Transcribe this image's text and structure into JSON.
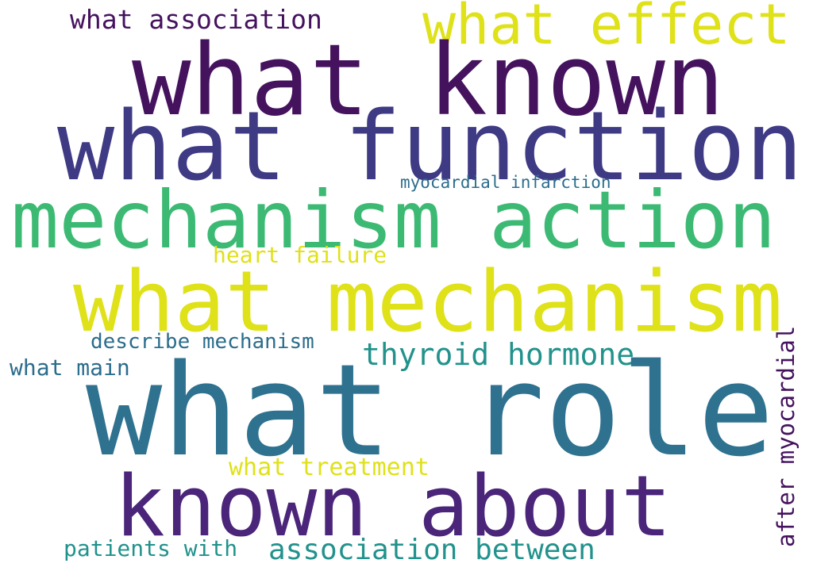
{
  "colors": {
    "background": "#ffffff",
    "dark_purple": "#45125e",
    "indigo": "#3f3a84",
    "purple": "#4a2579",
    "teal": "#2e7290",
    "cyan_teal": "#21928c",
    "green": "#3cba74",
    "yellow": "#dfe119",
    "slate_teal": "#2b6d8c"
  },
  "words": [
    {
      "id": "what-role",
      "text": "what role",
      "color": "teal"
    },
    {
      "id": "what-known",
      "text": "what known",
      "color": "dark_purple"
    },
    {
      "id": "what-function",
      "text": "what function",
      "color": "indigo"
    },
    {
      "id": "mechanism-action",
      "text": "mechanism action",
      "color": "green"
    },
    {
      "id": "what-mechanism",
      "text": "what mechanism",
      "color": "yellow"
    },
    {
      "id": "known-about",
      "text": "known about",
      "color": "purple"
    },
    {
      "id": "what-effect",
      "text": "what effect",
      "color": "yellow"
    },
    {
      "id": "what-association",
      "text": "what association",
      "color": "dark_purple"
    },
    {
      "id": "thyroid-hormone",
      "text": "thyroid hormone",
      "color": "cyan_teal"
    },
    {
      "id": "association-between",
      "text": "association between",
      "color": "cyan_teal"
    },
    {
      "id": "describe-mechanism",
      "text": "describe mechanism",
      "color": "slate_teal"
    },
    {
      "id": "what-main",
      "text": "what main",
      "color": "slate_teal"
    },
    {
      "id": "heart-failure",
      "text": "heart failure",
      "color": "yellow"
    },
    {
      "id": "what-treatment",
      "text": "what treatment",
      "color": "yellow"
    },
    {
      "id": "myocardial-infarction",
      "text": "myocardial infarction",
      "color": "slate_teal"
    },
    {
      "id": "patients-with",
      "text": "patients with",
      "color": "cyan_teal"
    },
    {
      "id": "after-myocardial",
      "text": "after myocardial",
      "color": "dark_purple"
    }
  ]
}
